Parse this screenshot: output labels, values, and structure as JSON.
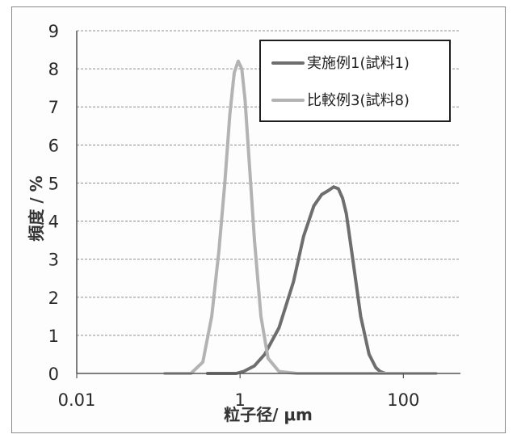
{
  "chart_data": {
    "type": "line",
    "xscale": "log",
    "xlim": [
      0.01,
      500
    ],
    "ylim": [
      0,
      9
    ],
    "xticks": [
      {
        "value": 0.01,
        "label": "0.01"
      },
      {
        "value": 1,
        "label": "1"
      },
      {
        "value": 100,
        "label": "100"
      }
    ],
    "yticks": [
      0,
      1,
      2,
      3,
      4,
      5,
      6,
      7,
      8,
      9
    ],
    "xlabel": "粒子径/ μm",
    "ylabel": "頻度 / %",
    "grid": "horizontal dashed",
    "legend_position": "top-right",
    "series": [
      {
        "name": "実施例1(試料1)",
        "color": "#6e6e6e",
        "x": [
          0.4,
          0.6,
          0.9,
          1.1,
          1.5,
          2.0,
          3.0,
          4.5,
          6.0,
          8.0,
          10.0,
          12.0,
          14.0,
          16.0,
          18.0,
          20.0,
          24.0,
          30.0,
          38.0,
          46.0,
          52.0,
          60.0
        ],
        "y": [
          0,
          0,
          0,
          0.05,
          0.2,
          0.5,
          1.2,
          2.4,
          3.6,
          4.4,
          4.7,
          4.8,
          4.9,
          4.85,
          4.6,
          4.2,
          3.0,
          1.5,
          0.5,
          0.15,
          0.05,
          0
        ]
      },
      {
        "name": "比較例3(試料8)",
        "color": "#b3b3b3",
        "x": [
          0.12,
          0.25,
          0.35,
          0.45,
          0.55,
          0.65,
          0.75,
          0.85,
          0.95,
          1.05,
          1.15,
          1.3,
          1.5,
          1.8,
          2.2,
          3.0,
          5.0,
          20.0,
          100.0,
          250.0
        ],
        "y": [
          0,
          0,
          0.3,
          1.5,
          3.2,
          5.0,
          6.8,
          7.9,
          8.2,
          8.0,
          7.2,
          5.5,
          3.5,
          1.5,
          0.4,
          0.05,
          0,
          0,
          0,
          0
        ]
      }
    ]
  }
}
